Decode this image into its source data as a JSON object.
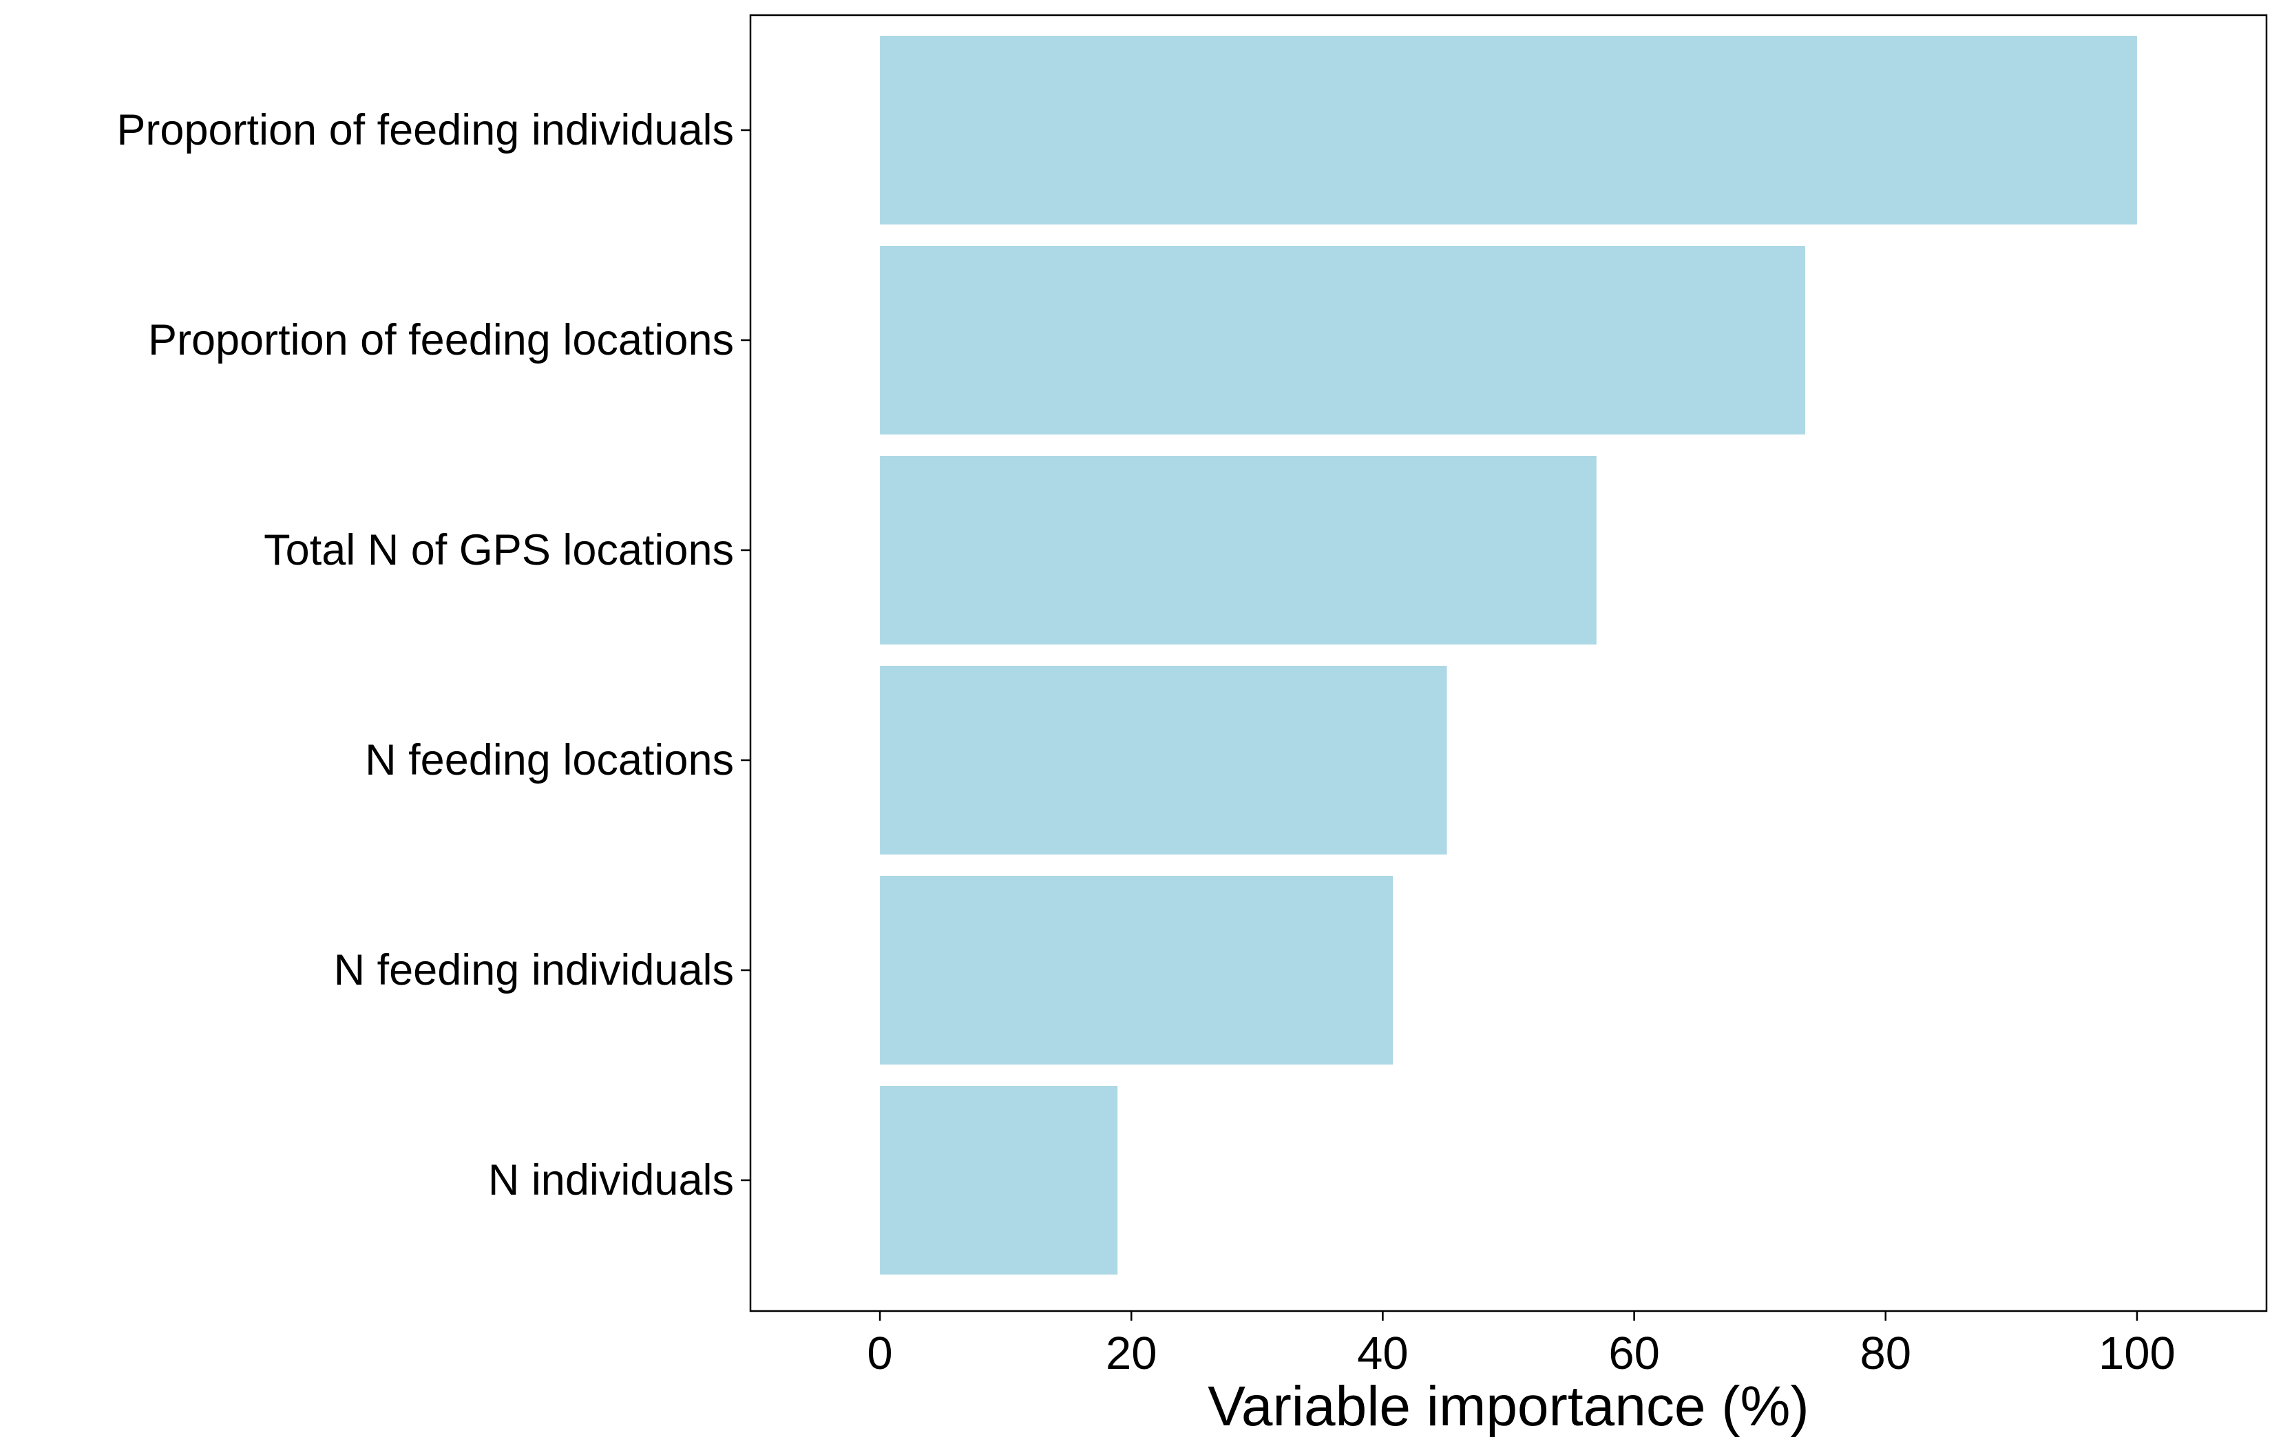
{
  "chart_data": {
    "type": "bar",
    "orientation": "horizontal",
    "title": "",
    "xlabel": "Variable importance (%)",
    "ylabel": "",
    "categories": [
      "Proportion of feeding individuals",
      "Proportion of feeding locations",
      "Total N of GPS locations",
      "N feeding locations",
      "N feeding individuals",
      "N individuals"
    ],
    "values": [
      100,
      73.6,
      57,
      45.1,
      40.8,
      18.9
    ],
    "xlim": [
      -10.3,
      110.3
    ],
    "xticks": [
      0,
      20,
      40,
      60,
      80,
      100
    ],
    "grid": false,
    "legend": "none",
    "bar_color": "#add8e6",
    "axis_color": "#000000"
  }
}
